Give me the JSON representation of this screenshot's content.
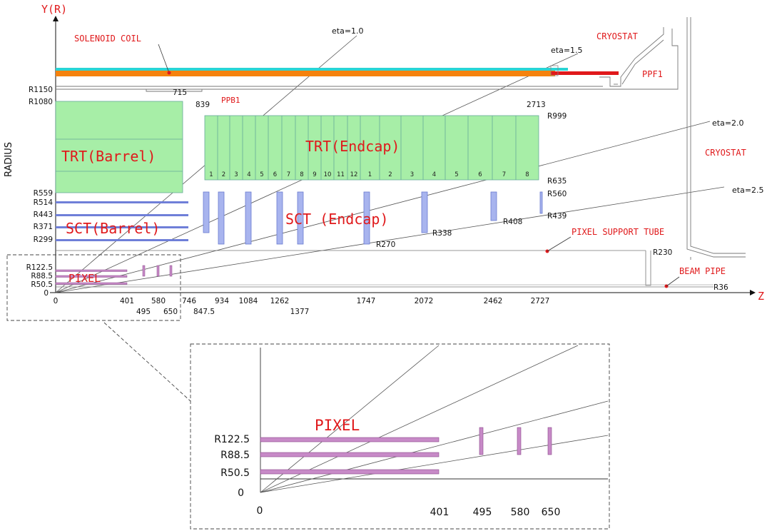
{
  "axes": {
    "y_label": "Y(R)",
    "x_label": "Z",
    "radius_label": "RADIUS"
  },
  "labels": {
    "solenoid": "SOLENOID COIL",
    "cryostat_top": "CRYOSTAT",
    "cryostat_right": "CRYOSTAT",
    "ppf1": "PPF1",
    "ppb1": "PPB1",
    "trt_barrel": "TRT(Barrel)",
    "trt_endcap": "TRT(Endcap)",
    "sct_barrel": "SCT(Barrel)",
    "sct_endcap": "SCT (Endcap)",
    "pixel": "PIXEL",
    "pixel_zoom": "PIXEL",
    "pixel_support": "PIXEL SUPPORT TUBE",
    "beam_pipe": "BEAM PIPE"
  },
  "eta_labels": [
    "eta=1.0",
    "eta=1.5",
    "eta=2.0",
    "eta=2.5"
  ],
  "radii_left": [
    "R1150",
    "R1080",
    "R559",
    "R514",
    "R443",
    "R371",
    "R299",
    "R122.5",
    "R88.5",
    "R50.5",
    "0"
  ],
  "radii_right": [
    "R999",
    "R635",
    "R560",
    "R439",
    "R408",
    "R338",
    "R270",
    "R230",
    "R36"
  ],
  "z_numbers": {
    "n715": "715",
    "n839": "839",
    "n2713": "2713",
    "row1": [
      "0",
      "401",
      "580",
      "746",
      "934",
      "1084",
      "1262",
      "1747",
      "2072",
      "2462",
      "2727"
    ],
    "row2": [
      "495",
      "650",
      "847.5",
      "1377"
    ]
  },
  "trt_modules": [
    "1",
    "2",
    "3",
    "4",
    "5",
    "6",
    "7",
    "8",
    "9",
    "10",
    "11",
    "12",
    "1",
    "2",
    "3",
    "4",
    "5",
    "6",
    "7",
    "8"
  ],
  "zoom": {
    "radii": [
      "R122.5",
      "R88.5",
      "R50.5",
      "0"
    ],
    "z": [
      "0",
      "401",
      "495",
      "580",
      "650"
    ]
  },
  "colors": {
    "trt": "#a7eea7",
    "sct": "#a8b4ee",
    "pixel": "#c78ac7",
    "red": "#e0191b",
    "orange": "#f5820d",
    "cyan": "#2ad4d4"
  }
}
